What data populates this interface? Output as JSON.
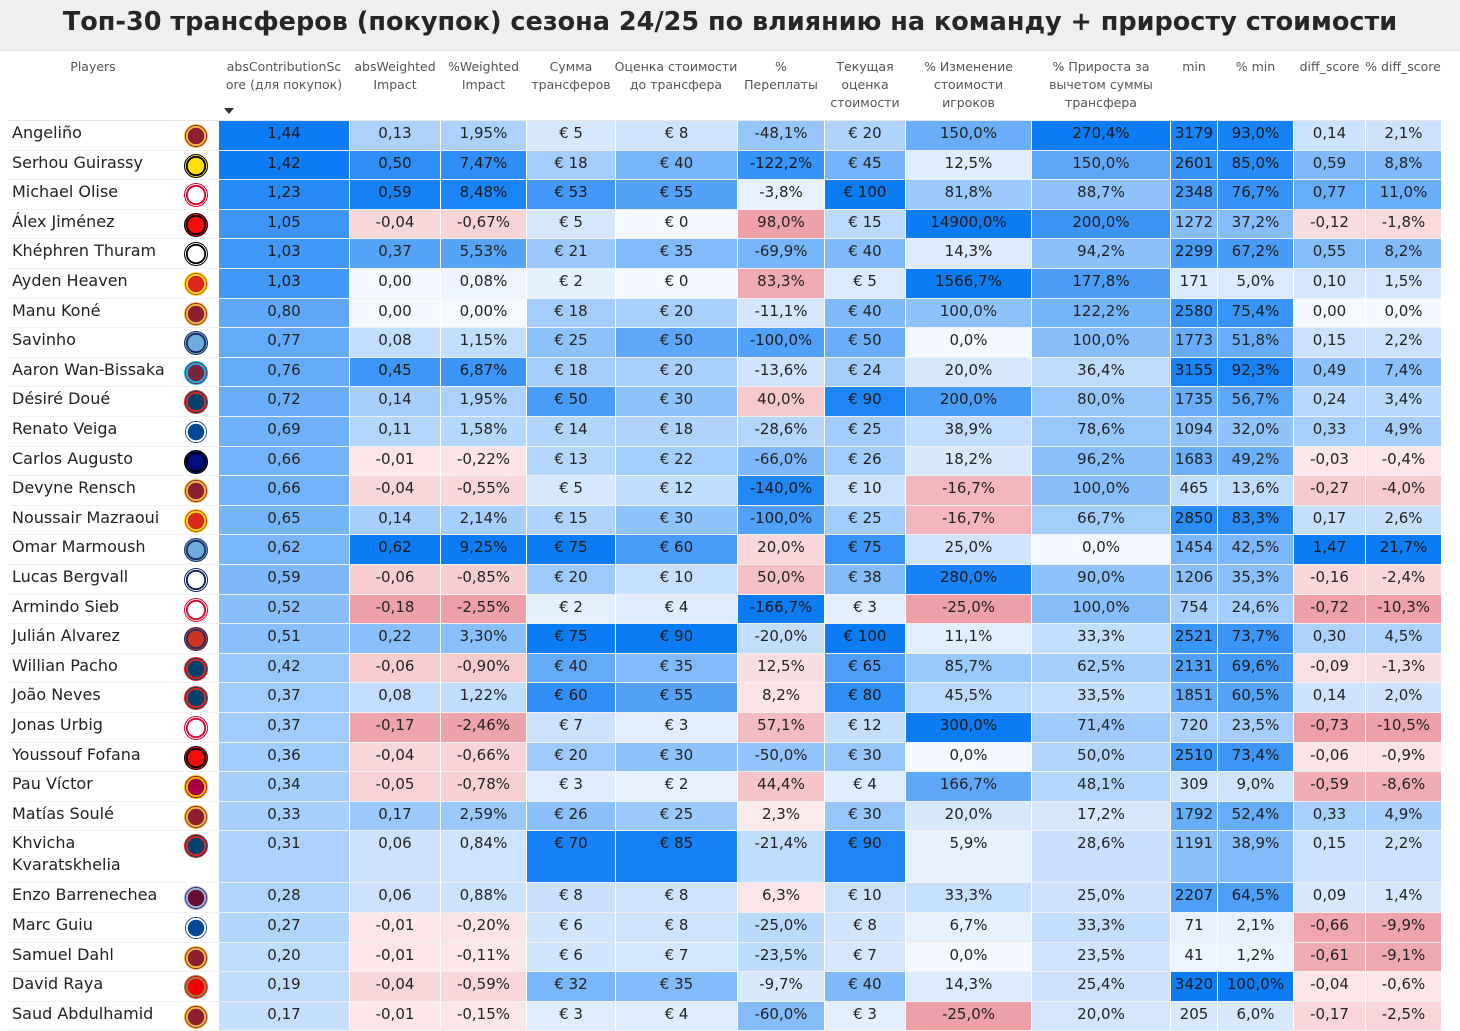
{
  "title": "Топ-30 трансферов (покупок) сезона 24/25 по влиянию на команду + приросту стоимости",
  "chart_data": {
    "type": "table",
    "columns": [
      {
        "key": "player",
        "label": "Players"
      },
      {
        "key": "club",
        "label": ""
      },
      {
        "key": "abs",
        "label": "absContributionScore (для покупок)",
        "sorted": "desc"
      },
      {
        "key": "awi",
        "label": "absWeighted Impact"
      },
      {
        "key": "pwi",
        "label": "%Weighted Impact"
      },
      {
        "key": "sum",
        "label": "Сумма трансферов"
      },
      {
        "key": "est",
        "label": "Оценка стоимости до трансфера"
      },
      {
        "key": "over",
        "label": "% Переплаты"
      },
      {
        "key": "cur",
        "label": "Текущая оценка стоимости"
      },
      {
        "key": "chg",
        "label": "% Изменение стоимости игроков"
      },
      {
        "key": "gain",
        "label": "% Прироста за вычетом суммы трансфера"
      },
      {
        "key": "min",
        "label": "min"
      },
      {
        "key": "pmin",
        "label": "% min"
      },
      {
        "key": "diff",
        "label": "diff_score"
      },
      {
        "key": "pdiff",
        "label": "% diff_score"
      }
    ],
    "rows": [
      {
        "player": "Angeliño",
        "club": "roma-logo",
        "abs": "1,44",
        "awi": "0,13",
        "pwi": "1,95%",
        "sum": "€ 5",
        "est": "€ 8",
        "over": "-48,1%",
        "cur": "€ 20",
        "chg": "150,0%",
        "gain": "270,4%",
        "min": "3179",
        "pmin": "93,0%",
        "diff": "0,14",
        "pdiff": "2,1%"
      },
      {
        "player": "Serhou Guirassy",
        "club": "dortmund-logo",
        "abs": "1,42",
        "awi": "0,50",
        "pwi": "7,47%",
        "sum": "€ 18",
        "est": "€ 40",
        "over": "-122,2%",
        "cur": "€ 45",
        "chg": "12,5%",
        "gain": "150,0%",
        "min": "2601",
        "pmin": "85,0%",
        "diff": "0,59",
        "pdiff": "8,8%"
      },
      {
        "player": "Michael Olise",
        "club": "bayern-logo",
        "abs": "1,23",
        "awi": "0,59",
        "pwi": "8,48%",
        "sum": "€ 53",
        "est": "€ 55",
        "over": "-3,8%",
        "cur": "€ 100",
        "chg": "81,8%",
        "gain": "88,7%",
        "min": "2348",
        "pmin": "76,7%",
        "diff": "0,77",
        "pdiff": "11,0%"
      },
      {
        "player": "Álex Jiménez",
        "club": "milan-logo",
        "abs": "1,05",
        "awi": "-0,04",
        "pwi": "-0,67%",
        "sum": "€ 5",
        "est": "€ 0",
        "over": "98,0%",
        "cur": "€ 15",
        "chg": "14900,0%",
        "gain": "200,0%",
        "min": "1272",
        "pmin": "37,2%",
        "diff": "-0,12",
        "pdiff": "-1,8%"
      },
      {
        "player": "Khéphren Thuram",
        "club": "juventus-logo",
        "abs": "1,03",
        "awi": "0,37",
        "pwi": "5,53%",
        "sum": "€ 21",
        "est": "€ 35",
        "over": "-69,9%",
        "cur": "€ 40",
        "chg": "14,3%",
        "gain": "94,2%",
        "min": "2299",
        "pmin": "67,2%",
        "diff": "0,55",
        "pdiff": "8,2%"
      },
      {
        "player": "Ayden Heaven",
        "club": "manutd-logo",
        "abs": "1,03",
        "awi": "0,00",
        "pwi": "0,08%",
        "sum": "€ 2",
        "est": "€ 0",
        "over": "83,3%",
        "cur": "€ 5",
        "chg": "1566,7%",
        "gain": "177,8%",
        "min": "171",
        "pmin": "5,0%",
        "diff": "0,10",
        "pdiff": "1,5%"
      },
      {
        "player": "Manu Koné",
        "club": "roma-logo",
        "abs": "0,80",
        "awi": "0,00",
        "pwi": "0,00%",
        "sum": "€ 18",
        "est": "€ 20",
        "over": "-11,1%",
        "cur": "€ 40",
        "chg": "100,0%",
        "gain": "122,2%",
        "min": "2580",
        "pmin": "75,4%",
        "diff": "0,00",
        "pdiff": "0,0%"
      },
      {
        "player": "Savinho",
        "club": "mancity-logo",
        "abs": "0,77",
        "awi": "0,08",
        "pwi": "1,15%",
        "sum": "€ 25",
        "est": "€ 50",
        "over": "-100,0%",
        "cur": "€ 50",
        "chg": "0,0%",
        "gain": "100,0%",
        "min": "1773",
        "pmin": "51,8%",
        "diff": "0,15",
        "pdiff": "2,2%"
      },
      {
        "player": "Aaron Wan-Bissaka",
        "club": "westham-logo",
        "abs": "0,76",
        "awi": "0,45",
        "pwi": "6,87%",
        "sum": "€ 18",
        "est": "€ 20",
        "over": "-13,6%",
        "cur": "€ 24",
        "chg": "20,0%",
        "gain": "36,4%",
        "min": "3155",
        "pmin": "92,3%",
        "diff": "0,49",
        "pdiff": "7,4%"
      },
      {
        "player": "Désiré Doué",
        "club": "psg-logo",
        "abs": "0,72",
        "awi": "0,14",
        "pwi": "1,95%",
        "sum": "€ 50",
        "est": "€ 30",
        "over": "40,0%",
        "cur": "€ 90",
        "chg": "200,0%",
        "gain": "80,0%",
        "min": "1735",
        "pmin": "56,7%",
        "diff": "0,24",
        "pdiff": "3,4%"
      },
      {
        "player": "Renato Veiga",
        "club": "chelsea-logo",
        "abs": "0,69",
        "awi": "0,11",
        "pwi": "1,58%",
        "sum": "€ 14",
        "est": "€ 18",
        "over": "-28,6%",
        "cur": "€ 25",
        "chg": "38,9%",
        "gain": "78,6%",
        "min": "1094",
        "pmin": "32,0%",
        "diff": "0,33",
        "pdiff": "4,9%"
      },
      {
        "player": "Carlos Augusto",
        "club": "inter-logo",
        "abs": "0,66",
        "awi": "-0,01",
        "pwi": "-0,22%",
        "sum": "€ 13",
        "est": "€ 22",
        "over": "-66,0%",
        "cur": "€ 26",
        "chg": "18,2%",
        "gain": "96,2%",
        "min": "1683",
        "pmin": "49,2%",
        "diff": "-0,03",
        "pdiff": "-0,4%"
      },
      {
        "player": "Devyne Rensch",
        "club": "roma-logo",
        "abs": "0,66",
        "awi": "-0,04",
        "pwi": "-0,55%",
        "sum": "€ 5",
        "est": "€ 12",
        "over": "-140,0%",
        "cur": "€ 10",
        "chg": "-16,7%",
        "gain": "100,0%",
        "min": "465",
        "pmin": "13,6%",
        "diff": "-0,27",
        "pdiff": "-4,0%"
      },
      {
        "player": "Noussair Mazraoui",
        "club": "manutd-logo",
        "abs": "0,65",
        "awi": "0,14",
        "pwi": "2,14%",
        "sum": "€ 15",
        "est": "€ 30",
        "over": "-100,0%",
        "cur": "€ 25",
        "chg": "-16,7%",
        "gain": "66,7%",
        "min": "2850",
        "pmin": "83,3%",
        "diff": "0,17",
        "pdiff": "2,6%"
      },
      {
        "player": "Omar Marmoush",
        "club": "mancity-logo",
        "abs": "0,62",
        "awi": "0,62",
        "pwi": "9,25%",
        "sum": "€ 75",
        "est": "€ 60",
        "over": "20,0%",
        "cur": "€ 75",
        "chg": "25,0%",
        "gain": "0,0%",
        "min": "1454",
        "pmin": "42,5%",
        "diff": "1,47",
        "pdiff": "21,7%"
      },
      {
        "player": "Lucas Bergvall",
        "club": "tottenham-logo",
        "abs": "0,59",
        "awi": "-0,06",
        "pwi": "-0,85%",
        "sum": "€ 20",
        "est": "€ 10",
        "over": "50,0%",
        "cur": "€ 38",
        "chg": "280,0%",
        "gain": "90,0%",
        "min": "1206",
        "pmin": "35,3%",
        "diff": "-0,16",
        "pdiff": "-2,4%"
      },
      {
        "player": "Armindo Sieb",
        "club": "bayern-logo",
        "abs": "0,52",
        "awi": "-0,18",
        "pwi": "-2,55%",
        "sum": "€ 2",
        "est": "€ 4",
        "over": "-166,7%",
        "cur": "€ 3",
        "chg": "-25,0%",
        "gain": "100,0%",
        "min": "754",
        "pmin": "24,6%",
        "diff": "-0,72",
        "pdiff": "-10,3%"
      },
      {
        "player": "Julián Alvarez",
        "club": "atletico-logo",
        "abs": "0,51",
        "awi": "0,22",
        "pwi": "3,30%",
        "sum": "€ 75",
        "est": "€ 90",
        "over": "-20,0%",
        "cur": "€ 100",
        "chg": "11,1%",
        "gain": "33,3%",
        "min": "2521",
        "pmin": "73,7%",
        "diff": "0,30",
        "pdiff": "4,5%"
      },
      {
        "player": "Willian Pacho",
        "club": "psg-logo",
        "abs": "0,42",
        "awi": "-0,06",
        "pwi": "-0,90%",
        "sum": "€ 40",
        "est": "€ 35",
        "over": "12,5%",
        "cur": "€ 65",
        "chg": "85,7%",
        "gain": "62,5%",
        "min": "2131",
        "pmin": "69,6%",
        "diff": "-0,09",
        "pdiff": "-1,3%"
      },
      {
        "player": "João Neves",
        "club": "psg-logo",
        "abs": "0,37",
        "awi": "0,08",
        "pwi": "1,22%",
        "sum": "€ 60",
        "est": "€ 55",
        "over": "8,2%",
        "cur": "€ 80",
        "chg": "45,5%",
        "gain": "33,5%",
        "min": "1851",
        "pmin": "60,5%",
        "diff": "0,14",
        "pdiff": "2,0%"
      },
      {
        "player": "Jonas Urbig",
        "club": "bayern-logo",
        "abs": "0,37",
        "awi": "-0,17",
        "pwi": "-2,46%",
        "sum": "€ 7",
        "est": "€ 3",
        "over": "57,1%",
        "cur": "€ 12",
        "chg": "300,0%",
        "gain": "71,4%",
        "min": "720",
        "pmin": "23,5%",
        "diff": "-0,73",
        "pdiff": "-10,5%"
      },
      {
        "player": "Youssouf Fofana",
        "club": "milan-logo",
        "abs": "0,36",
        "awi": "-0,04",
        "pwi": "-0,66%",
        "sum": "€ 20",
        "est": "€ 30",
        "over": "-50,0%",
        "cur": "€ 30",
        "chg": "0,0%",
        "gain": "50,0%",
        "min": "2510",
        "pmin": "73,4%",
        "diff": "-0,06",
        "pdiff": "-0,9%"
      },
      {
        "player": "Pau Víctor",
        "club": "barcelona-logo",
        "abs": "0,34",
        "awi": "-0,05",
        "pwi": "-0,78%",
        "sum": "€ 3",
        "est": "€ 2",
        "over": "44,4%",
        "cur": "€ 4",
        "chg": "166,7%",
        "gain": "48,1%",
        "min": "309",
        "pmin": "9,0%",
        "diff": "-0,59",
        "pdiff": "-8,6%"
      },
      {
        "player": "Matías Soulé",
        "club": "roma-logo",
        "abs": "0,33",
        "awi": "0,17",
        "pwi": "2,59%",
        "sum": "€ 26",
        "est": "€ 25",
        "over": "2,3%",
        "cur": "€ 30",
        "chg": "20,0%",
        "gain": "17,2%",
        "min": "1792",
        "pmin": "52,4%",
        "diff": "0,33",
        "pdiff": "4,9%"
      },
      {
        "player": "Khvicha Kvaratskhelia",
        "club": "psg-logo",
        "abs": "0,31",
        "awi": "0,06",
        "pwi": "0,84%",
        "sum": "€ 70",
        "est": "€ 85",
        "over": "-21,4%",
        "cur": "€ 90",
        "chg": "5,9%",
        "gain": "28,6%",
        "min": "1191",
        "pmin": "38,9%",
        "diff": "0,15",
        "pdiff": "2,2%"
      },
      {
        "player": "Enzo Barrenechea",
        "club": "astonvilla-logo",
        "abs": "0,28",
        "awi": "0,06",
        "pwi": "0,88%",
        "sum": "€ 8",
        "est": "€ 8",
        "over": "6,3%",
        "cur": "€ 10",
        "chg": "33,3%",
        "gain": "25,0%",
        "min": "2207",
        "pmin": "64,5%",
        "diff": "0,09",
        "pdiff": "1,4%"
      },
      {
        "player": "Marc Guiu",
        "club": "chelsea-logo",
        "abs": "0,27",
        "awi": "-0,01",
        "pwi": "-0,20%",
        "sum": "€ 6",
        "est": "€ 8",
        "over": "-25,0%",
        "cur": "€ 8",
        "chg": "6,7%",
        "gain": "33,3%",
        "min": "71",
        "pmin": "2,1%",
        "diff": "-0,66",
        "pdiff": "-9,9%"
      },
      {
        "player": "Samuel Dahl",
        "club": "roma-logo",
        "abs": "0,20",
        "awi": "-0,01",
        "pwi": "-0,11%",
        "sum": "€ 6",
        "est": "€ 7",
        "over": "-23,5%",
        "cur": "€ 7",
        "chg": "0,0%",
        "gain": "23,5%",
        "min": "41",
        "pmin": "1,2%",
        "diff": "-0,61",
        "pdiff": "-9,1%"
      },
      {
        "player": "David Raya",
        "club": "arsenal-logo",
        "abs": "0,19",
        "awi": "-0,04",
        "pwi": "-0,59%",
        "sum": "€ 32",
        "est": "€ 35",
        "over": "-9,7%",
        "cur": "€ 40",
        "chg": "14,3%",
        "gain": "25,4%",
        "min": "3420",
        "pmin": "100,0%",
        "diff": "-0,04",
        "pdiff": "-0,6%"
      },
      {
        "player": "Saud Abdulhamid",
        "club": "roma-logo",
        "abs": "0,17",
        "awi": "-0,01",
        "pwi": "-0,15%",
        "sum": "€ 3",
        "est": "€ 4",
        "over": "-60,0%",
        "cur": "€ 3",
        "chg": "-25,0%",
        "gain": "20,0%",
        "min": "205",
        "pmin": "6,0%",
        "diff": "-0,17",
        "pdiff": "-2,5%"
      }
    ]
  },
  "clubs": {
    "roma-logo": {
      "bg": "#8e1f2f",
      "fg": "#f0bc42",
      "ring": "#f0bc42"
    },
    "dortmund-logo": {
      "bg": "#fde100",
      "fg": "#000000",
      "ring": "#000000"
    },
    "bayern-logo": {
      "bg": "#ffffff",
      "fg": "#dc052d",
      "ring": "#dc052d"
    },
    "milan-logo": {
      "bg": "#fb090b",
      "fg": "#000000",
      "ring": "#000000"
    },
    "juventus-logo": {
      "bg": "#ffffff",
      "fg": "#000000",
      "ring": "#000000"
    },
    "manutd-logo": {
      "bg": "#da291c",
      "fg": "#fbe122",
      "ring": "#fbe122"
    },
    "mancity-logo": {
      "bg": "#6cabdd",
      "fg": "#1c2c5b",
      "ring": "#1c2c5b"
    },
    "westham-logo": {
      "bg": "#7a263a",
      "fg": "#1bb1e7",
      "ring": "#1bb1e7"
    },
    "psg-logo": {
      "bg": "#004170",
      "fg": "#da291c",
      "ring": "#da291c"
    },
    "chelsea-logo": {
      "bg": "#034694",
      "fg": "#ffffff",
      "ring": "#ffffff"
    },
    "inter-logo": {
      "bg": "#010e80",
      "fg": "#000000",
      "ring": "#000000"
    },
    "tottenham-logo": {
      "bg": "#ffffff",
      "fg": "#132257",
      "ring": "#132257"
    },
    "atletico-logo": {
      "bg": "#cb3524",
      "fg": "#ffffff",
      "ring": "#272e61"
    },
    "barcelona-logo": {
      "bg": "#a50044",
      "fg": "#004d98",
      "ring": "#edbb00"
    },
    "astonvilla-logo": {
      "bg": "#670e36",
      "fg": "#95bfe5",
      "ring": "#95bfe5"
    },
    "arsenal-logo": {
      "bg": "#ef0107",
      "fg": "#ffffff",
      "ring": "#9c824a"
    }
  }
}
